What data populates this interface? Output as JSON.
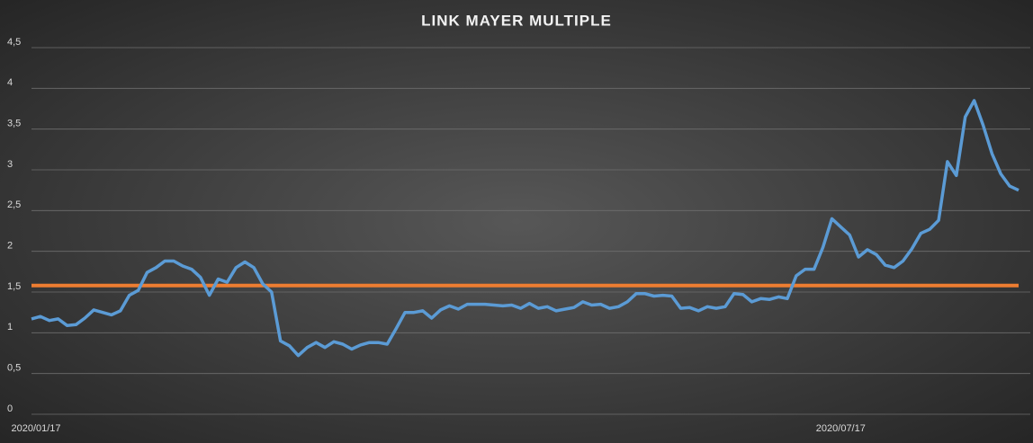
{
  "chart_data": {
    "type": "line",
    "title": "LINK MAYER MULTIPLE",
    "categories": [
      "2020/01/17",
      null,
      null,
      null,
      null,
      null,
      null,
      null,
      null,
      null,
      null,
      null,
      null,
      null,
      null,
      null,
      null,
      null,
      null,
      null,
      null,
      null,
      null,
      null,
      null,
      null,
      null,
      null,
      null,
      null,
      null,
      null,
      null,
      null,
      null,
      null,
      null,
      null,
      null,
      null,
      null,
      null,
      null,
      null,
      null,
      null,
      null,
      null,
      null,
      null,
      null,
      null,
      null,
      null,
      null,
      null,
      null,
      null,
      null,
      null,
      null,
      null,
      null,
      null,
      null,
      null,
      null,
      null,
      null,
      null,
      null,
      null,
      null,
      null,
      null,
      null,
      null,
      null,
      null,
      null,
      null,
      null,
      null,
      null,
      null,
      null,
      null,
      null,
      null,
      null,
      null,
      "2020/07/17",
      null,
      null,
      null,
      null,
      null,
      null,
      null,
      null,
      null,
      null,
      null,
      null,
      null,
      null,
      null,
      null,
      null,
      null,
      null,
      null
    ],
    "series": [
      {
        "color": "#5b9bd5",
        "values": [
          1.17,
          1.2,
          1.15,
          1.17,
          1.09,
          1.1,
          1.18,
          1.28,
          1.25,
          1.22,
          1.27,
          1.46,
          1.52,
          1.74,
          1.8,
          1.88,
          1.88,
          1.82,
          1.78,
          1.68,
          1.46,
          1.66,
          1.62,
          1.8,
          1.87,
          1.8,
          1.6,
          1.5,
          0.9,
          0.84,
          0.72,
          0.82,
          0.88,
          0.82,
          0.89,
          0.86,
          0.8,
          0.85,
          0.88,
          0.88,
          0.86,
          1.05,
          1.25,
          1.25,
          1.27,
          1.18,
          1.28,
          1.33,
          1.29,
          1.35,
          1.35,
          1.35,
          1.34,
          1.33,
          1.34,
          1.3,
          1.36,
          1.3,
          1.32,
          1.27,
          1.29,
          1.31,
          1.38,
          1.34,
          1.35,
          1.3,
          1.32,
          1.38,
          1.48,
          1.48,
          1.45,
          1.46,
          1.45,
          1.3,
          1.31,
          1.27,
          1.32,
          1.3,
          1.32,
          1.48,
          1.47,
          1.38,
          1.42,
          1.41,
          1.44,
          1.42,
          1.7,
          1.78,
          1.78,
          2.05,
          2.4,
          2.3,
          2.2,
          1.93,
          2.02,
          1.96,
          1.83,
          1.8,
          1.88,
          2.03,
          2.22,
          2.27,
          2.38,
          3.1,
          2.93,
          3.65,
          3.85,
          3.55,
          3.2,
          2.95,
          2.8,
          2.75
        ]
      }
    ],
    "reference_line": {
      "value": 1.58,
      "color": "#ed7d31"
    },
    "ylim": [
      0,
      4.5
    ],
    "yticks": [
      0,
      {
        "value": 0.5,
        "label": "0,5"
      },
      1,
      {
        "value": 1.5,
        "label": "1,5"
      },
      2,
      {
        "value": 2.5,
        "label": "2,5"
      },
      3,
      {
        "value": 3.5,
        "label": "3,5"
      },
      4,
      {
        "value": 4.5,
        "label": "4,5"
      }
    ],
    "grid": true
  }
}
